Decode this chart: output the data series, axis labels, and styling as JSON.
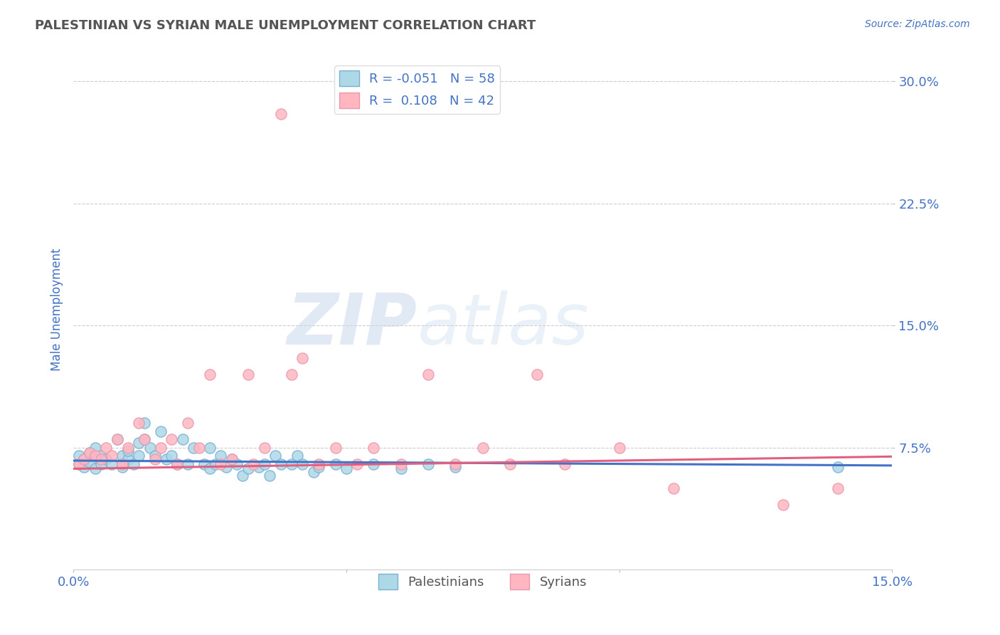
{
  "title": "PALESTINIAN VS SYRIAN MALE UNEMPLOYMENT CORRELATION CHART",
  "source_text": "Source: ZipAtlas.com",
  "ylabel": "Male Unemployment",
  "watermark_zip": "ZIP",
  "watermark_atlas": "atlas",
  "xlim": [
    0.0,
    0.15
  ],
  "ylim": [
    0.0,
    0.32
  ],
  "yticks": [
    0.075,
    0.15,
    0.225,
    0.3
  ],
  "ytick_labels": [
    "7.5%",
    "15.0%",
    "22.5%",
    "30.0%"
  ],
  "xticks": [
    0.0,
    0.05,
    0.1,
    0.15
  ],
  "xtick_labels": [
    "0.0%",
    "",
    "",
    "15.0%"
  ],
  "palestinians_color": "#7BAFD4",
  "palestinians_fill": "#ADD8E6",
  "syrians_color": "#E899AC",
  "syrians_fill": "#FFB6C1",
  "line_blue": "#4472C4",
  "line_pink": "#E06080",
  "R_palestinian": -0.051,
  "N_palestinian": 58,
  "R_syrian": 0.108,
  "N_syrian": 42,
  "legend_label_1": "Palestinians",
  "legend_label_2": "Syrians",
  "title_color": "#555555",
  "axis_label_color": "#4472C4",
  "tick_label_color": "#4472C4",
  "grid_color": "#C8C8C8",
  "background_color": "#FFFFFF",
  "palestinians_x": [
    0.001,
    0.001,
    0.002,
    0.002,
    0.003,
    0.003,
    0.004,
    0.004,
    0.005,
    0.005,
    0.006,
    0.007,
    0.008,
    0.009,
    0.009,
    0.01,
    0.01,
    0.011,
    0.012,
    0.012,
    0.013,
    0.013,
    0.014,
    0.015,
    0.016,
    0.017,
    0.018,
    0.019,
    0.02,
    0.021,
    0.022,
    0.024,
    0.025,
    0.025,
    0.026,
    0.027,
    0.028,
    0.029,
    0.03,
    0.031,
    0.032,
    0.034,
    0.035,
    0.036,
    0.037,
    0.038,
    0.04,
    0.041,
    0.042,
    0.044,
    0.045,
    0.048,
    0.05,
    0.055,
    0.06,
    0.065,
    0.07,
    0.14
  ],
  "palestinians_y": [
    0.065,
    0.07,
    0.068,
    0.063,
    0.072,
    0.066,
    0.075,
    0.062,
    0.07,
    0.065,
    0.068,
    0.065,
    0.08,
    0.063,
    0.07,
    0.068,
    0.073,
    0.065,
    0.078,
    0.07,
    0.09,
    0.08,
    0.075,
    0.07,
    0.085,
    0.068,
    0.07,
    0.065,
    0.08,
    0.065,
    0.075,
    0.065,
    0.075,
    0.062,
    0.065,
    0.07,
    0.063,
    0.068,
    0.065,
    0.058,
    0.062,
    0.063,
    0.065,
    0.058,
    0.07,
    0.065,
    0.065,
    0.07,
    0.065,
    0.06,
    0.063,
    0.065,
    0.062,
    0.065,
    0.062,
    0.065,
    0.063,
    0.063
  ],
  "syrians_x": [
    0.001,
    0.002,
    0.003,
    0.004,
    0.005,
    0.006,
    0.007,
    0.008,
    0.009,
    0.01,
    0.012,
    0.013,
    0.015,
    0.016,
    0.018,
    0.019,
    0.021,
    0.023,
    0.025,
    0.027,
    0.029,
    0.032,
    0.033,
    0.035,
    0.038,
    0.04,
    0.042,
    0.045,
    0.048,
    0.052,
    0.055,
    0.06,
    0.065,
    0.07,
    0.075,
    0.08,
    0.085,
    0.09,
    0.1,
    0.11,
    0.13,
    0.14
  ],
  "syrians_y": [
    0.065,
    0.068,
    0.072,
    0.07,
    0.068,
    0.075,
    0.07,
    0.08,
    0.065,
    0.075,
    0.09,
    0.08,
    0.068,
    0.075,
    0.08,
    0.065,
    0.09,
    0.075,
    0.12,
    0.065,
    0.068,
    0.12,
    0.065,
    0.075,
    0.28,
    0.12,
    0.13,
    0.065,
    0.075,
    0.065,
    0.075,
    0.065,
    0.12,
    0.065,
    0.075,
    0.065,
    0.12,
    0.065,
    0.075,
    0.05,
    0.04,
    0.05
  ],
  "p_slope": -0.02,
  "p_intercept": 0.067,
  "s_slope": 0.05,
  "s_intercept": 0.062
}
